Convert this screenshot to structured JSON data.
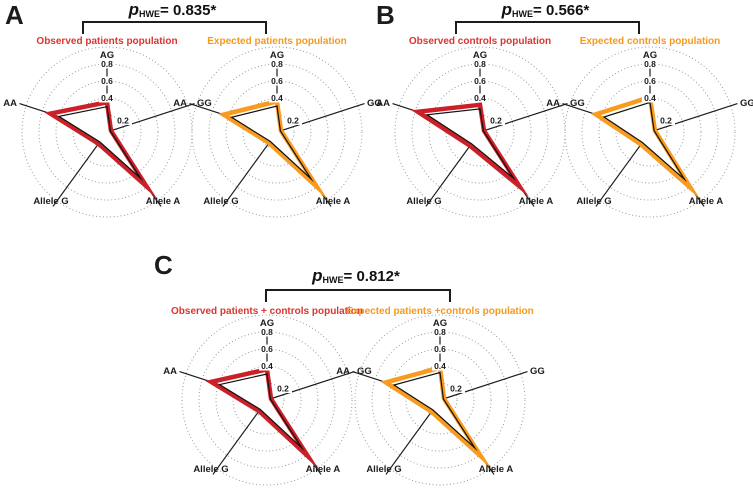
{
  "colors": {
    "observed": "#cb2027",
    "expected": "#f89b1e",
    "observed_title": "#d93630",
    "expected_title": "#f6991d",
    "axis": "#1c1c1c",
    "ring": "#8f8f8f",
    "inner_line": "#111111"
  },
  "panels": [
    {
      "letter": "A",
      "p_symbol": "p",
      "p_sub": "HWE",
      "p_value": "= 0.835*",
      "observed_title": "Observed patients population",
      "expected_title": "Expected patients population"
    },
    {
      "letter": "B",
      "p_symbol": "p",
      "p_sub": "HWE",
      "p_value": "= 0.566*",
      "observed_title": "Observed controls population",
      "expected_title": "Expected controls population"
    },
    {
      "letter": "C",
      "p_symbol": "p",
      "p_sub": "HWE",
      "p_value": "= 0.812*",
      "observed_title": "Observed patients + controls population",
      "expected_title": "Expected patients +controls population"
    }
  ],
  "chart_data": [
    {
      "type": "radar",
      "panel": "A",
      "p_hwe": "0.835*",
      "categories": [
        "AG",
        "GG",
        "Allele A",
        "Allele G",
        "AA"
      ],
      "ticks": [
        0.2,
        0.4,
        0.6,
        0.8
      ],
      "tick_labels": [
        "0.2",
        "0.4",
        "0.6",
        "0.8"
      ],
      "range": [
        0,
        1
      ],
      "grid": "dotted-circles",
      "legend_position": "title-above-each-chart",
      "series": [
        {
          "name": "Observed patients population",
          "color": "#cb2027",
          "values": [
            0.35,
            0.05,
            0.79,
            0.17,
            0.7
          ]
        },
        {
          "name": "Expected patients population",
          "color": "#f89b1e",
          "values": [
            0.36,
            0.05,
            0.8,
            0.16,
            0.66
          ]
        }
      ]
    },
    {
      "type": "radar",
      "panel": "B",
      "p_hwe": "0.566*",
      "categories": [
        "AG",
        "GG",
        "Allele A",
        "Allele G",
        "AA"
      ],
      "ticks": [
        0.2,
        0.4,
        0.6,
        0.8
      ],
      "tick_labels": [
        "0.2",
        "0.4",
        "0.6",
        "0.8"
      ],
      "range": [
        0,
        1
      ],
      "grid": "dotted-circles",
      "legend_position": "title-above-each-chart",
      "series": [
        {
          "name": "Observed controls population",
          "color": "#cb2027",
          "values": [
            0.32,
            0.05,
            0.79,
            0.2,
            0.77
          ]
        },
        {
          "name": "Expected controls population",
          "color": "#f89b1e",
          "values": [
            0.41,
            0.06,
            0.81,
            0.18,
            0.67
          ]
        }
      ]
    },
    {
      "type": "radar",
      "panel": "C",
      "p_hwe": "0.812*",
      "categories": [
        "AG",
        "GG",
        "Allele A",
        "Allele G",
        "AA"
      ],
      "ticks": [
        0.2,
        0.4,
        0.6,
        0.8
      ],
      "tick_labels": [
        "0.2",
        "0.4",
        "0.6",
        "0.8"
      ],
      "range": [
        0,
        1
      ],
      "grid": "dotted-circles",
      "legend_position": "title-above-each-chart",
      "series": [
        {
          "name": "Observed patients + controls population",
          "color": "#cb2027",
          "values": [
            0.36,
            0.05,
            0.82,
            0.16,
            0.69
          ]
        },
        {
          "name": "Expected patients +controls population",
          "color": "#f89b1e",
          "values": [
            0.38,
            0.05,
            0.82,
            0.17,
            0.67
          ]
        }
      ]
    }
  ]
}
